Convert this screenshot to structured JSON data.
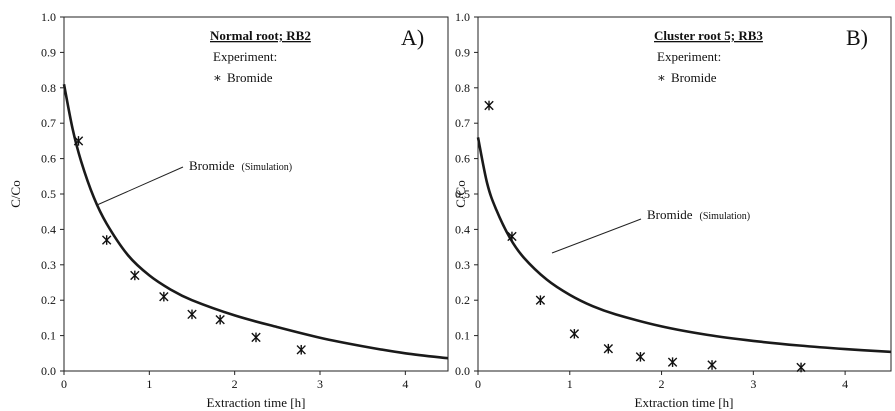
{
  "chart_data": [
    {
      "type": "scatter",
      "panel_letter": "A)",
      "title": "Normal root; RB2",
      "legend_heading": "Experiment:",
      "legend_marker": "∗",
      "legend_label": "Bromide",
      "annotation_main": "Bromide",
      "annotation_small": "(Simulation)",
      "xlabel": "Extraction time [h]",
      "ylabel": "C/Co",
      "xlim": [
        0,
        4.5
      ],
      "ylim": [
        0,
        1.0
      ],
      "xticks": [
        "0",
        "1",
        "2",
        "3",
        "4"
      ],
      "yticks": [
        "0.0",
        "0.1",
        "0.2",
        "0.3",
        "0.4",
        "0.5",
        "0.6",
        "0.7",
        "0.8",
        "0.9",
        "1.0"
      ],
      "grid": false,
      "experiment": {
        "name": "Bromide",
        "x": [
          0.17,
          0.5,
          0.83,
          1.17,
          1.5,
          1.83,
          2.25,
          2.78
        ],
        "y": [
          0.65,
          0.37,
          0.27,
          0.21,
          0.16,
          0.145,
          0.095,
          0.06
        ]
      },
      "simulation": {
        "x": [
          0,
          0.1,
          0.2,
          0.35,
          0.5,
          0.75,
          1.0,
          1.25,
          1.5,
          2.0,
          2.5,
          3.0,
          3.5,
          4.0,
          4.5
        ],
        "y": [
          0.81,
          0.685,
          0.593,
          0.49,
          0.416,
          0.327,
          0.27,
          0.23,
          0.2,
          0.157,
          0.124,
          0.094,
          0.07,
          0.05,
          0.036
        ]
      }
    },
    {
      "type": "scatter",
      "panel_letter": "B)",
      "title": "Cluster root 5; RB3",
      "legend_heading": "Experiment:",
      "legend_marker": "∗",
      "legend_label": "Bromide",
      "annotation_main": "Bromide",
      "annotation_small": "(Simulation)",
      "xlabel": "Extraction time [h]",
      "ylabel": "C/Co",
      "xlim": [
        0,
        4.5
      ],
      "ylim": [
        0,
        1.0
      ],
      "xticks": [
        "0",
        "1",
        "2",
        "3",
        "4"
      ],
      "yticks": [
        "0.0",
        "0.1",
        "0.2",
        "0.3",
        "0.4",
        "0.5",
        "0.6",
        "0.7",
        "0.8",
        "0.9",
        "1.0"
      ],
      "grid": false,
      "experiment": {
        "name": "Bromide",
        "x": [
          0.12,
          0.37,
          0.68,
          1.05,
          1.42,
          1.77,
          2.12,
          2.55,
          3.52
        ],
        "y": [
          0.75,
          0.38,
          0.2,
          0.105,
          0.063,
          0.04,
          0.025,
          0.017,
          0.01
        ]
      },
      "simulation": {
        "x": [
          0,
          0.1,
          0.2,
          0.35,
          0.5,
          0.75,
          1.0,
          1.25,
          1.5,
          2.0,
          2.5,
          3.0,
          3.5,
          4.0,
          4.5
        ],
        "y": [
          0.66,
          0.53,
          0.455,
          0.375,
          0.32,
          0.258,
          0.215,
          0.183,
          0.16,
          0.126,
          0.102,
          0.085,
          0.072,
          0.062,
          0.054
        ]
      }
    }
  ]
}
